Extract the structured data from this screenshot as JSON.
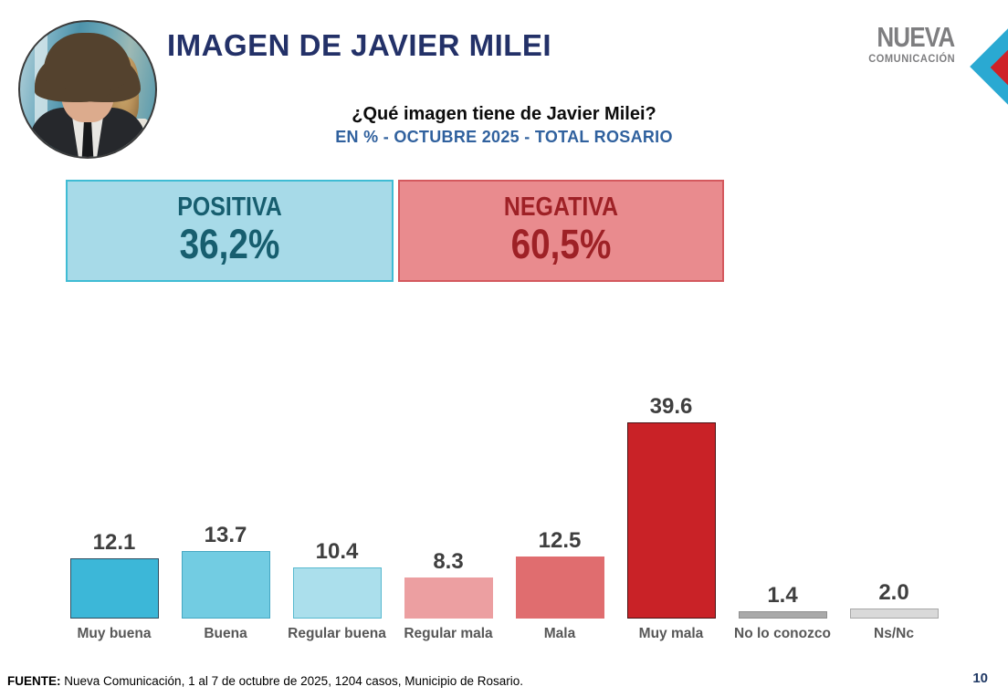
{
  "header": {
    "title": "IMAGEN DE JAVIER MILEI",
    "logo": {
      "line1": "NUEVA",
      "line2": "COMUNICACIÓN"
    }
  },
  "subtitle": {
    "question": "¿Qué imagen tiene de Javier Milei?",
    "scope": "EN % - OCTUBRE 2025 - TOTAL ROSARIO"
  },
  "summary": {
    "positive": {
      "label": "POSITIVA",
      "value": "36,2%",
      "fill": "#a7dae8",
      "border": "#3fbcd4",
      "text_color": "#175e6f"
    },
    "negative": {
      "label": "NEGATIVA",
      "value": "60,5%",
      "fill": "#e98b8e",
      "border": "#d4595e",
      "text_color": "#9e2126"
    }
  },
  "chart_data": {
    "type": "bar",
    "title": "¿Qué imagen tiene de Javier Milei?",
    "subtitle": "EN % - OCTUBRE 2025 - TOTAL ROSARIO",
    "categories": [
      "Muy buena",
      "Buena",
      "Regular buena",
      "Regular mala",
      "Mala",
      "Muy mala",
      "No lo conozco",
      "Ns/Nc"
    ],
    "values": [
      12.1,
      13.7,
      10.4,
      8.3,
      12.5,
      39.6,
      1.4,
      2.0
    ],
    "labels": [
      "12.1",
      "13.7",
      "10.4",
      "8.3",
      "12.5",
      "39.6",
      "1.4",
      "2.0"
    ],
    "bar_colors": [
      "#3cb7d8",
      "#72cce2",
      "#abdfec",
      "#ec9fa1",
      "#e06d6f",
      "#c92227",
      "#a9a9a9",
      "#d9d9d9"
    ],
    "bar_border_colors": [
      "#2e4d60",
      "#45a7c2",
      "#58b9cf",
      null,
      null,
      "#4a1113",
      "#8f8f8f",
      "#a8a8a8"
    ],
    "xlabel": "",
    "ylabel": "%",
    "ylim": [
      0,
      45
    ],
    "grid": false,
    "legend": false,
    "summary": {
      "positiva_pct": 36.2,
      "negativa_pct": 60.5
    }
  },
  "footer": {
    "source_label": "FUENTE:",
    "source_text": " Nueva Comunicación, 1 al 7 de octubre de 2025, 1204 casos, Municipio de Rosario.",
    "page_number": "10"
  }
}
